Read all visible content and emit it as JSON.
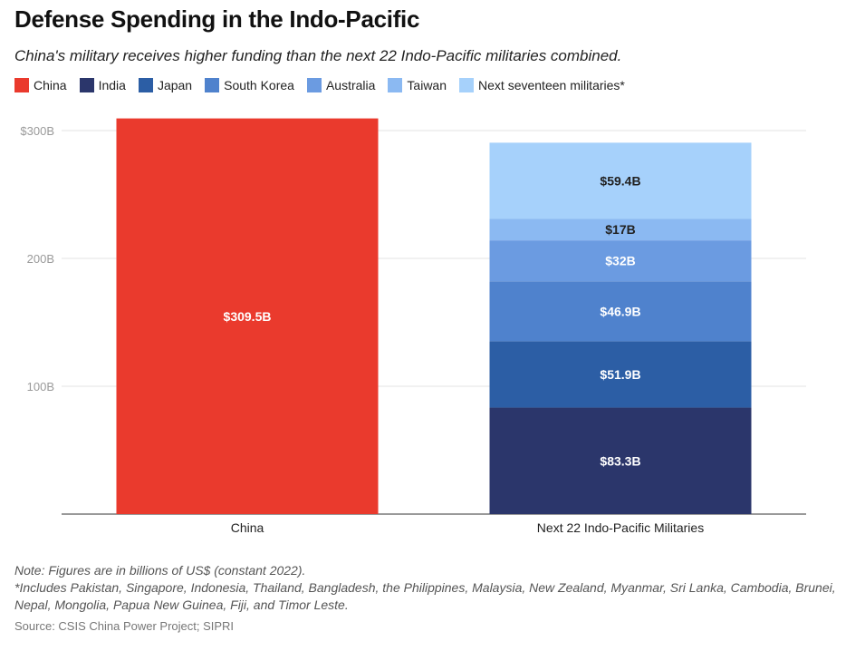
{
  "title": "Defense Spending in the Indo-Pacific",
  "subtitle": "China's military receives higher funding than the next 22 Indo-Pacific militaries combined.",
  "legend": [
    {
      "label": "China",
      "color": "#ea3a2d"
    },
    {
      "label": "India",
      "color": "#2b366b"
    },
    {
      "label": "Japan",
      "color": "#2c5ea5"
    },
    {
      "label": "South Korea",
      "color": "#4f82cd"
    },
    {
      "label": "Australia",
      "color": "#6b9be1"
    },
    {
      "label": "Taiwan",
      "color": "#8bb9f2"
    },
    {
      "label": "Next seventeen militaries*",
      "color": "#a6d1fb"
    }
  ],
  "chart_data": {
    "type": "bar",
    "stacked": true,
    "categories": [
      "China",
      "Next 22 Indo-Pacific Militaries"
    ],
    "series": [
      {
        "name": "China",
        "values": [
          309.5,
          0
        ],
        "labels": [
          "$309.5B",
          ""
        ]
      },
      {
        "name": "India",
        "values": [
          0,
          83.3
        ],
        "labels": [
          "",
          "$83.3B"
        ]
      },
      {
        "name": "Japan",
        "values": [
          0,
          51.9
        ],
        "labels": [
          "",
          "$51.9B"
        ]
      },
      {
        "name": "South Korea",
        "values": [
          0,
          46.9
        ],
        "labels": [
          "",
          "$46.9B"
        ]
      },
      {
        "name": "Australia",
        "values": [
          0,
          32
        ],
        "labels": [
          "",
          "$32B"
        ]
      },
      {
        "name": "Taiwan",
        "values": [
          0,
          17
        ],
        "labels": [
          "",
          "$17B"
        ]
      },
      {
        "name": "Next seventeen militaries*",
        "values": [
          0,
          59.4
        ],
        "labels": [
          "",
          "$59.4B"
        ]
      }
    ],
    "yticks": [
      {
        "value": 100,
        "label": "100B"
      },
      {
        "value": 200,
        "label": "200B"
      },
      {
        "value": 300,
        "label": "$300B"
      }
    ],
    "ylim": [
      0,
      310
    ],
    "grid": true,
    "legend_position": "top"
  },
  "footer": {
    "note": "Note: Figures are in billions of US$ (constant 2022).",
    "includes": "*Includes Pakistan, Singapore, Indonesia, Thailand, Bangladesh, the Philippines, Malaysia, New Zealand, Myanmar, Sri Lanka, Cambodia, Brunei, Nepal, Mongolia, Papua New Guinea, Fiji, and Timor Leste.",
    "source": "Source: CSIS China Power Project; SIPRI"
  }
}
